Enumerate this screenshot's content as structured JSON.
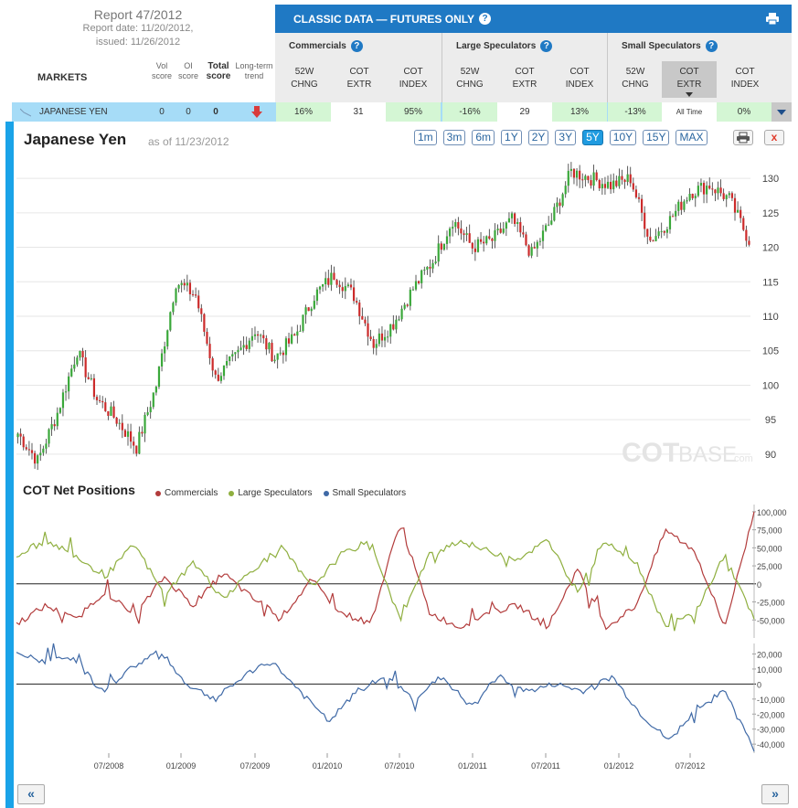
{
  "report": {
    "title": "Report 47/2012",
    "report_date": "Report date: 11/20/2012,",
    "issued": "issued: 11/26/2012"
  },
  "table_header": {
    "markets": "MARKETS",
    "vol_score": [
      "Vol",
      "score"
    ],
    "oi_score": [
      "OI",
      "score"
    ],
    "total_score": [
      "Total",
      "score"
    ],
    "trend": [
      "Long-term",
      "trend"
    ]
  },
  "panel": {
    "title": "CLASSIC DATA — FUTURES ONLY",
    "help": "?",
    "groups": [
      {
        "title": "Commercials",
        "cols": [
          [
            "52W",
            "CHNG"
          ],
          [
            "COT",
            "EXTR"
          ],
          [
            "COT",
            "INDEX"
          ]
        ]
      },
      {
        "title": "Large Speculators",
        "cols": [
          [
            "52W",
            "CHNG"
          ],
          [
            "COT",
            "EXTR"
          ],
          [
            "COT",
            "INDEX"
          ]
        ]
      },
      {
        "title": "Small Speculators",
        "cols": [
          [
            "52W",
            "CHNG"
          ],
          [
            "COT",
            "EXTR"
          ],
          [
            "COT",
            "INDEX"
          ]
        ]
      }
    ]
  },
  "market_row": {
    "name": "JAPANESE YEN",
    "vol": "0",
    "oi": "0",
    "total": "0",
    "values": [
      "16%",
      "31",
      "95%",
      "-16%",
      "29",
      "13%",
      "-13%",
      "All Time",
      "0%"
    ]
  },
  "chart": {
    "title": "Japanese Yen",
    "as_of": "as of 11/23/2012",
    "ranges": [
      "1m",
      "3m",
      "6m",
      "1Y",
      "2Y",
      "3Y",
      "5Y",
      "10Y",
      "15Y",
      "MAX"
    ],
    "active_range": "5Y",
    "watermark_a": "COT",
    "watermark_b": "BASE",
    "watermark_c": ".com",
    "close_label": "x"
  },
  "cot": {
    "title": "COT Net Positions",
    "legend": [
      {
        "name": "Commercials",
        "color": "#b23b3b"
      },
      {
        "name": "Large Speculators",
        "color": "#8faf3f"
      },
      {
        "name": "Small Speculators",
        "color": "#3f69a6"
      }
    ]
  },
  "nav": {
    "prev": "«",
    "next": "»"
  },
  "chart_data": [
    {
      "type": "candlestick",
      "title": "Japanese Yen",
      "ylim": [
        88,
        132
      ],
      "yticks": [
        90,
        95,
        100,
        105,
        110,
        115,
        120,
        125,
        130
      ],
      "x_start": "2007-11",
      "x_end": "2012-11",
      "weekly_close_approx": [
        93,
        89,
        96,
        105,
        98,
        95,
        91,
        100,
        115,
        113,
        101,
        104,
        108,
        104,
        107,
        113,
        116,
        113,
        106,
        109,
        114,
        118,
        124,
        120,
        121,
        124,
        119,
        124,
        131,
        130,
        129,
        130,
        121,
        124,
        128,
        129,
        127,
        121
      ]
    },
    {
      "type": "line",
      "title": "COT Net Positions",
      "ylim": [
        -75000,
        110000
      ],
      "yticks": [
        100000,
        75000,
        50000,
        25000,
        0,
        -25000,
        -50000
      ],
      "series": [
        {
          "name": "Commercials",
          "values": [
            -55000,
            -30000,
            -50000,
            -10000,
            -45000,
            10000,
            -30000,
            15000,
            -20000,
            -45000,
            5000,
            -40000,
            -55000,
            85000,
            -40000,
            -60000,
            -40000,
            -30000,
            -60000,
            20000,
            -60000,
            -30000,
            75000,
            45000,
            -60000,
            100000
          ]
        },
        {
          "name": "Large Speculators",
          "values": [
            40000,
            60000,
            40000,
            10000,
            55000,
            -15000,
            30000,
            -20000,
            20000,
            50000,
            -5000,
            40000,
            60000,
            -50000,
            40000,
            60000,
            45000,
            35000,
            60000,
            -10000,
            60000,
            30000,
            -60000,
            -40000,
            40000,
            -50000
          ]
        }
      ],
      "xticks": [
        "07/2008",
        "01/2009",
        "07/2009",
        "01/2010",
        "07/2010",
        "01/2011",
        "07/2011",
        "01/2012",
        "07/2012"
      ]
    },
    {
      "type": "line",
      "title": "Small Speculators",
      "ylim": [
        -46000,
        27000
      ],
      "yticks": [
        20000,
        10000,
        0,
        -10000,
        -20000,
        -30000,
        -40000
      ],
      "series": [
        {
          "name": "Small Speculators",
          "values": [
            20000,
            15000,
            18000,
            -5000,
            10000,
            22000,
            0,
            -10000,
            5000,
            15000,
            -5000,
            -25000,
            -5000,
            5000,
            -10000,
            5000,
            -15000,
            5000,
            -5000,
            0,
            -5000,
            5000,
            -20000,
            -38000,
            -15000,
            -5000,
            -44000
          ]
        }
      ],
      "xticks": [
        "07/2008",
        "01/2009",
        "07/2009",
        "01/2010",
        "07/2010",
        "01/2011",
        "07/2011",
        "01/2012",
        "07/2012"
      ]
    }
  ]
}
